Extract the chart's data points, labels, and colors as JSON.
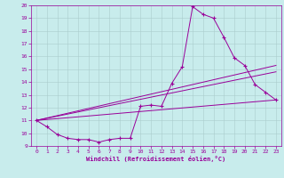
{
  "xlabel": "Windchill (Refroidissement éolien,°C)",
  "bg_color": "#c8ecec",
  "line_color": "#990099",
  "grid_color": "#aacccc",
  "xlim": [
    -0.5,
    23.5
  ],
  "ylim": [
    9,
    20
  ],
  "yticks": [
    9,
    10,
    11,
    12,
    13,
    14,
    15,
    16,
    17,
    18,
    19,
    20
  ],
  "xticks": [
    0,
    1,
    2,
    3,
    4,
    5,
    6,
    7,
    8,
    9,
    10,
    11,
    12,
    13,
    14,
    15,
    16,
    17,
    18,
    19,
    20,
    21,
    22,
    23
  ],
  "curve1_x": [
    0,
    1,
    2,
    3,
    4,
    5,
    6,
    7,
    8,
    9,
    10,
    11,
    12,
    13,
    14,
    15,
    16,
    17,
    18,
    19,
    20,
    21,
    22,
    23
  ],
  "curve1_y": [
    11.0,
    10.5,
    9.9,
    9.6,
    9.5,
    9.5,
    9.3,
    9.5,
    9.6,
    9.6,
    12.1,
    12.2,
    12.1,
    13.9,
    15.2,
    19.9,
    19.3,
    19.0,
    17.5,
    15.9,
    15.3,
    13.8,
    13.2,
    12.6
  ],
  "line2_x": [
    0,
    23
  ],
  "line2_y": [
    11.0,
    12.6
  ],
  "line3_x": [
    0,
    23
  ],
  "line3_y": [
    11.0,
    14.8
  ],
  "line4_x": [
    0,
    23
  ],
  "line4_y": [
    11.0,
    15.3
  ]
}
